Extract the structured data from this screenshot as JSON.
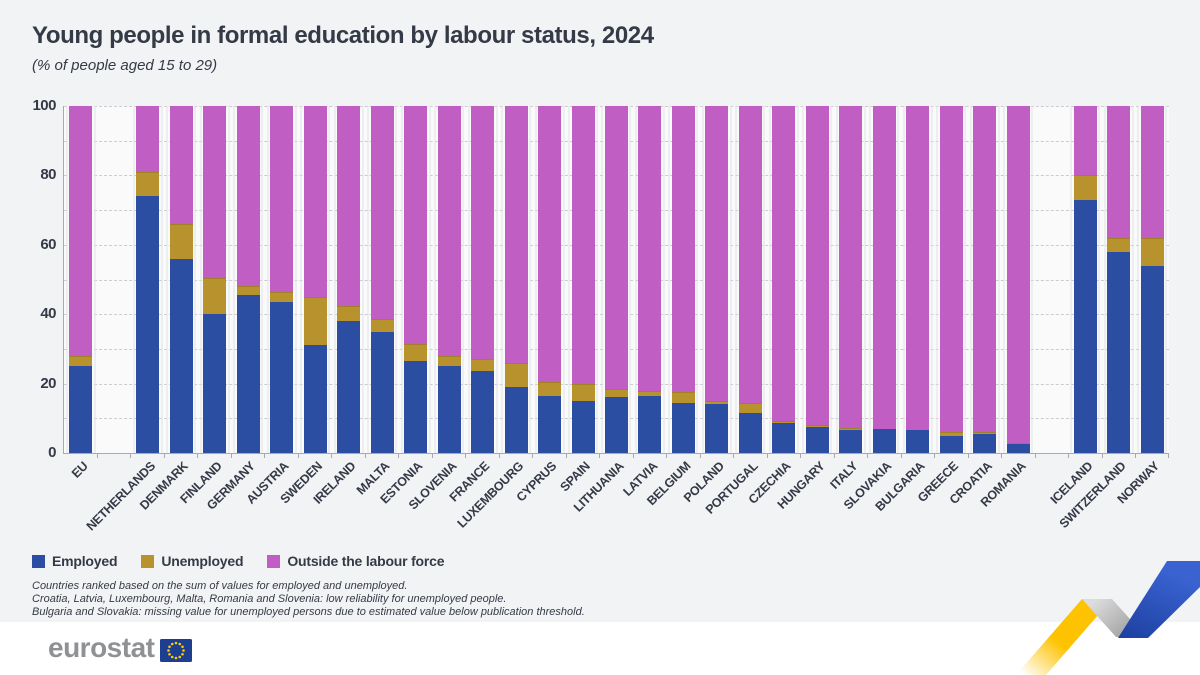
{
  "header": {
    "title": "Young people in formal education by labour status, 2024",
    "subtitle": "(% of people aged 15 to 29)"
  },
  "legend": {
    "items": [
      {
        "label": "Employed",
        "color": "#2b4ea3"
      },
      {
        "label": "Unemployed",
        "color": "#b8922d"
      },
      {
        "label": "Outside the labour force",
        "color": "#c05ec4"
      }
    ]
  },
  "footnotes": [
    "Countries ranked based on the sum of values for employed and unemployed.",
    "Croatia, Latvia, Luxembourg, Malta, Romania and Slovenia: low reliability for unemployed people.",
    "Bulgaria and Slovakia: missing value for unemployed persons due to estimated value below publication threshold."
  ],
  "footer": {
    "logo_text": "eurostat",
    "eu_flag_icon": "eu-flag-icon",
    "ribbon_graphic": "eurostat-zigzag-ribbon"
  },
  "colors": {
    "employed": "#2b4ea3",
    "unemployed": "#b8922d",
    "outside": "#c05ec4",
    "page_background": "#f2f3f5",
    "footer_background": "#ffffff",
    "text": "#343a46"
  },
  "chart_data": {
    "type": "bar",
    "stacked": true,
    "title": "Young people in formal education by labour status, 2024",
    "subtitle": "(% of people aged 15 to 29)",
    "ylabel": "",
    "xlabel": "",
    "ylim": [
      0,
      100
    ],
    "y_ticks": [
      0,
      20,
      40,
      60,
      80,
      100
    ],
    "grid": "horizontal dashed, every 10",
    "legend_position": "bottom",
    "series_names": [
      "Employed",
      "Unemployed",
      "Outside the labour force"
    ],
    "gap_after_indices": [
      0,
      27
    ],
    "bars": [
      {
        "label": "EU",
        "employed": 25,
        "unemployed": 3,
        "outside": 72
      },
      {
        "label": "NETHERLANDS",
        "employed": 74,
        "unemployed": 7,
        "outside": 19
      },
      {
        "label": "DENMARK",
        "employed": 56,
        "unemployed": 10,
        "outside": 34
      },
      {
        "label": "FINLAND",
        "employed": 40,
        "unemployed": 10.5,
        "outside": 49.5
      },
      {
        "label": "GERMANY",
        "employed": 45.5,
        "unemployed": 2.5,
        "outside": 52
      },
      {
        "label": "AUSTRIA",
        "employed": 43.5,
        "unemployed": 3,
        "outside": 53.5
      },
      {
        "label": "SWEDEN",
        "employed": 31,
        "unemployed": 14,
        "outside": 55
      },
      {
        "label": "IRELAND",
        "employed": 38,
        "unemployed": 4.5,
        "outside": 57.5
      },
      {
        "label": "MALTA",
        "employed": 35,
        "unemployed": 3.5,
        "outside": 61.5
      },
      {
        "label": "ESTONIA",
        "employed": 26.5,
        "unemployed": 5,
        "outside": 68.5
      },
      {
        "label": "SLOVENIA",
        "employed": 25,
        "unemployed": 3,
        "outside": 72
      },
      {
        "label": "FRANCE",
        "employed": 23.5,
        "unemployed": 3.5,
        "outside": 73
      },
      {
        "label": "LUXEMBOURG",
        "employed": 19,
        "unemployed": 7,
        "outside": 74
      },
      {
        "label": "CYPRUS",
        "employed": 16.5,
        "unemployed": 4,
        "outside": 79.5
      },
      {
        "label": "SPAIN",
        "employed": 15,
        "unemployed": 5,
        "outside": 80
      },
      {
        "label": "LITHUANIA",
        "employed": 16,
        "unemployed": 2.5,
        "outside": 81.5
      },
      {
        "label": "LATVIA",
        "employed": 16.5,
        "unemployed": 1.5,
        "outside": 82
      },
      {
        "label": "BELGIUM",
        "employed": 14.5,
        "unemployed": 3,
        "outside": 82.5
      },
      {
        "label": "POLAND",
        "employed": 14,
        "unemployed": 1,
        "outside": 85
      },
      {
        "label": "PORTUGAL",
        "employed": 11.5,
        "unemployed": 3,
        "outside": 85.5
      },
      {
        "label": "CZECHIA",
        "employed": 8.5,
        "unemployed": 0.7,
        "outside": 90.8
      },
      {
        "label": "HUNGARY",
        "employed": 7.5,
        "unemployed": 0.7,
        "outside": 91.8
      },
      {
        "label": "ITALY",
        "employed": 6.5,
        "unemployed": 0.7,
        "outside": 92.8
      },
      {
        "label": "SLOVAKIA",
        "employed": 7,
        "unemployed": null,
        "outside": 93
      },
      {
        "label": "BULGARIA",
        "employed": 6.5,
        "unemployed": null,
        "outside": 93.5
      },
      {
        "label": "GREECE",
        "employed": 5,
        "unemployed": 1,
        "outside": 94
      },
      {
        "label": "CROATIA",
        "employed": 5.6,
        "unemployed": 0.4,
        "outside": 94
      },
      {
        "label": "ROMANIA",
        "employed": 2.5,
        "unemployed": 0.5,
        "outside": 97
      },
      {
        "label": "ICELAND",
        "employed": 73,
        "unemployed": 7,
        "outside": 20
      },
      {
        "label": "SWITZERLAND",
        "employed": 58,
        "unemployed": 4,
        "outside": 38
      },
      {
        "label": "NORWAY",
        "employed": 54,
        "unemployed": 8,
        "outside": 38
      }
    ]
  }
}
